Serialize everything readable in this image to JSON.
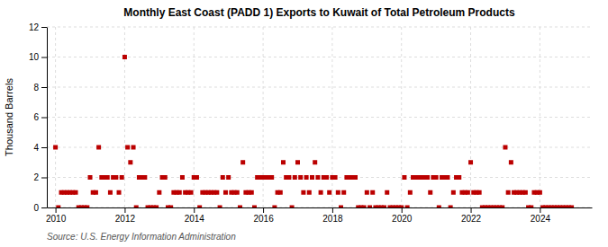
{
  "chart_data": {
    "type": "scatter",
    "title": "Monthly East Coast (PADD 1) Exports to Kuwait of Total Petroleum Products",
    "ylabel": "Thousand Barrels",
    "annotations": [
      "Source: U.S. Energy Information Administration"
    ],
    "color": "#bb0000",
    "marker": "square",
    "grid": true,
    "xlim": [
      2009.75,
      2025.5
    ],
    "xticks": [
      2010,
      2012,
      2014,
      2016,
      2018,
      2020,
      2022,
      2024
    ],
    "ylim": [
      0,
      12
    ],
    "yticks": [
      0,
      2,
      4,
      6,
      8,
      10,
      12
    ],
    "x": [
      2010,
      2010.0833333333333,
      2010.1666666666667,
      2010.25,
      2010.3333333333333,
      2010.4166666666667,
      2010.5,
      2010.5833333333333,
      2010.6666666666667,
      2010.75,
      2010.8333333333333,
      2010.9166666666667,
      2011,
      2011.0833333333333,
      2011.1666666666667,
      2011.25,
      2011.3333333333333,
      2011.4166666666667,
      2011.5,
      2011.5833333333333,
      2011.6666666666667,
      2011.75,
      2011.8333333333333,
      2011.9166666666667,
      2012,
      2012.0833333333333,
      2012.1666666666667,
      2012.25,
      2012.3333333333333,
      2012.4166666666667,
      2012.5,
      2012.5833333333333,
      2012.6666666666667,
      2012.75,
      2012.8333333333333,
      2012.9166666666667,
      2013,
      2013.0833333333333,
      2013.1666666666667,
      2013.25,
      2013.3333333333333,
      2013.4166666666667,
      2013.5,
      2013.5833333333333,
      2013.6666666666667,
      2013.75,
      2013.8333333333333,
      2013.9166666666667,
      2014,
      2014.0833333333333,
      2014.1666666666667,
      2014.25,
      2014.3333333333333,
      2014.4166666666667,
      2014.5,
      2014.5833333333333,
      2014.6666666666667,
      2014.75,
      2014.8333333333333,
      2014.9166666666667,
      2015,
      2015.0833333333333,
      2015.1666666666667,
      2015.25,
      2015.3333333333333,
      2015.4166666666667,
      2015.5,
      2015.5833333333333,
      2015.6666666666667,
      2015.75,
      2015.8333333333333,
      2015.9166666666667,
      2016,
      2016.0833333333333,
      2016.1666666666667,
      2016.25,
      2016.3333333333333,
      2016.4166666666667,
      2016.5,
      2016.5833333333333,
      2016.6666666666667,
      2016.75,
      2016.8333333333333,
      2016.9166666666667,
      2017,
      2017.0833333333333,
      2017.1666666666667,
      2017.25,
      2017.3333333333333,
      2017.4166666666667,
      2017.5,
      2017.5833333333333,
      2017.6666666666667,
      2017.75,
      2017.8333333333333,
      2017.9166666666667,
      2018,
      2018.0833333333333,
      2018.1666666666667,
      2018.25,
      2018.3333333333333,
      2018.4166666666667,
      2018.5,
      2018.5833333333333,
      2018.6666666666667,
      2018.75,
      2018.8333333333333,
      2018.9166666666667,
      2019,
      2019.0833333333333,
      2019.1666666666667,
      2019.25,
      2019.3333333333333,
      2019.4166666666667,
      2019.5,
      2019.5833333333333,
      2019.6666666666667,
      2019.75,
      2019.8333333333333,
      2019.9166666666667,
      2020,
      2020.0833333333333,
      2020.1666666666667,
      2020.25,
      2020.3333333333333,
      2020.4166666666667,
      2020.5,
      2020.5833333333333,
      2020.6666666666667,
      2020.75,
      2020.8333333333333,
      2020.9166666666667,
      2021,
      2021.0833333333333,
      2021.1666666666667,
      2021.25,
      2021.3333333333333,
      2021.4166666666667,
      2021.5,
      2021.5833333333333,
      2021.6666666666667,
      2021.75,
      2021.8333333333333,
      2021.9166666666667,
      2022,
      2022.0833333333333,
      2022.1666666666667,
      2022.25,
      2022.3333333333333,
      2022.4166666666667,
      2022.5,
      2022.5833333333333,
      2022.6666666666667,
      2022.75,
      2022.8333333333333,
      2022.9166666666667,
      2023,
      2023.0833333333333,
      2023.1666666666667,
      2023.25,
      2023.3333333333333,
      2023.4166666666667,
      2023.5,
      2023.5833333333333,
      2023.6666666666667,
      2023.75,
      2023.8333333333333,
      2023.9166666666667,
      2024,
      2024.0833333333333,
      2024.1666666666667,
      2024.25,
      2024.3333333333333,
      2024.4166666666667,
      2024.5,
      2024.5833333333333,
      2024.6666666666667,
      2024.75,
      2024.8333333333333,
      2024.9166666666667
    ],
    "values": [
      4,
      0,
      1,
      1,
      1,
      1,
      1,
      1,
      0,
      0,
      0,
      0,
      2,
      1,
      1,
      4,
      2,
      2,
      2,
      1,
      2,
      2,
      1,
      2,
      10,
      4,
      3,
      4,
      0,
      2,
      2,
      2,
      0,
      0,
      0,
      0,
      1,
      2,
      2,
      0,
      0,
      1,
      1,
      1,
      2,
      1,
      1,
      1,
      2,
      2,
      0,
      1,
      1,
      1,
      1,
      1,
      1,
      0,
      2,
      1,
      2,
      1,
      1,
      1,
      0,
      3,
      1,
      1,
      1,
      0,
      2,
      2,
      2,
      2,
      2,
      2,
      0,
      1,
      1,
      3,
      2,
      2,
      0,
      2,
      3,
      2,
      1,
      2,
      1,
      2,
      3,
      2,
      1,
      2,
      2,
      1,
      2,
      2,
      1,
      0,
      1,
      2,
      2,
      2,
      2,
      0,
      0,
      0,
      1,
      0,
      1,
      0,
      0,
      0,
      0,
      1,
      0,
      0,
      0,
      0,
      0,
      2,
      0,
      1,
      2,
      2,
      2,
      2,
      2,
      2,
      1,
      2,
      2,
      0,
      2,
      2,
      2,
      0,
      1,
      2,
      2,
      1,
      1,
      1,
      3,
      1,
      1,
      1,
      0,
      0,
      0,
      0,
      0,
      0,
      0,
      0,
      4,
      1,
      3,
      1,
      1,
      1,
      1,
      1,
      0,
      0,
      1,
      1,
      1,
      0,
      0,
      0,
      0,
      0,
      0,
      0,
      0,
      0,
      0,
      0
    ]
  }
}
